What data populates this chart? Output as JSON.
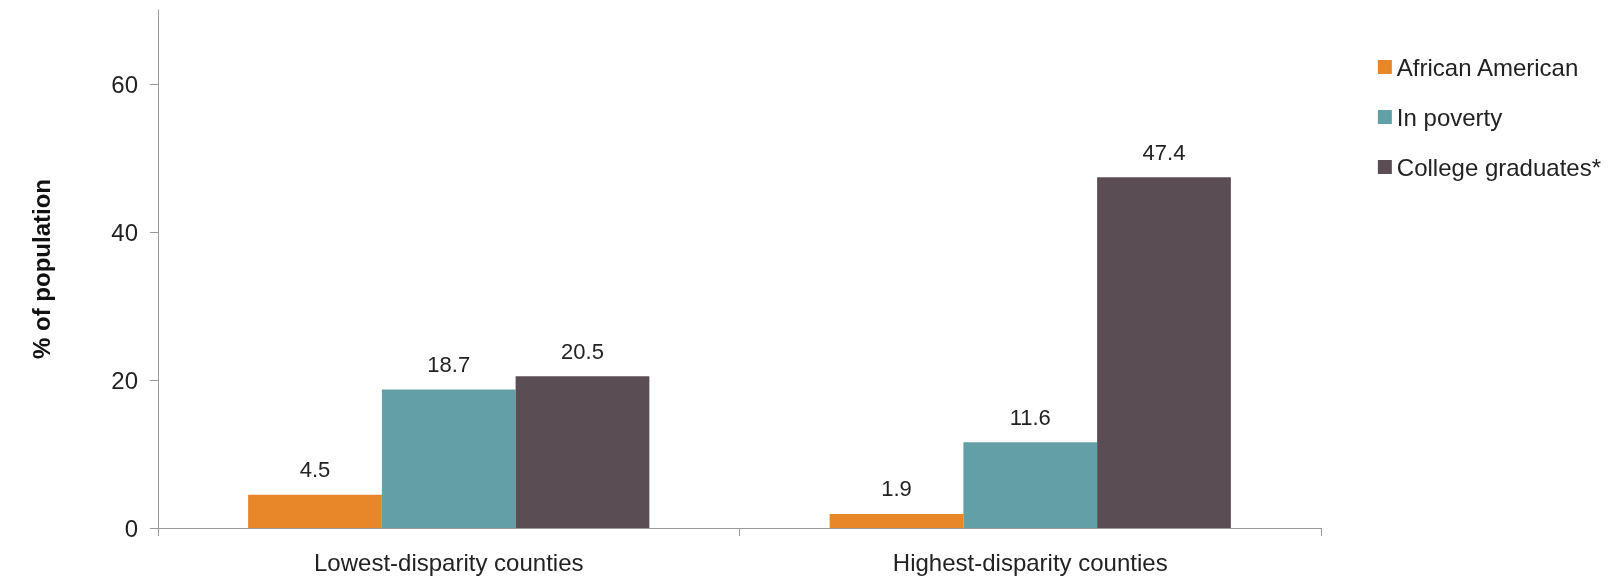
{
  "chart_data": {
    "type": "bar",
    "ylabel": "% of population",
    "categories": [
      "Lowest-disparity counties",
      "Highest-disparity counties"
    ],
    "series": [
      {
        "name": "African American",
        "color": "#e8872a",
        "values": [
          4.5,
          1.9
        ]
      },
      {
        "name": "In poverty",
        "color": "#62a0a7",
        "values": [
          18.7,
          11.6
        ]
      },
      {
        "name": "College graduates*",
        "color": "#5a4d53",
        "values": [
          20.5,
          47.4
        ]
      }
    ],
    "ylim": [
      0,
      70
    ],
    "yticks": [
      0,
      20,
      40,
      60
    ],
    "grid": false,
    "legend": "right",
    "data_labels": true
  }
}
